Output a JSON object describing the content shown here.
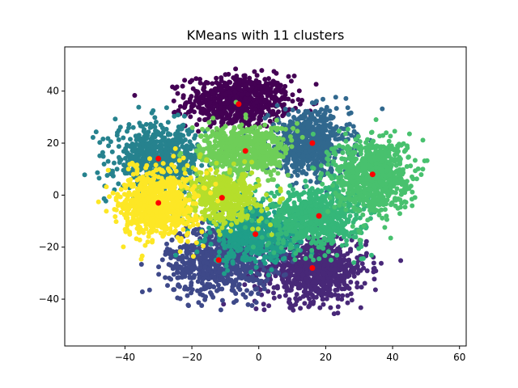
{
  "chart_data": {
    "type": "scatter",
    "title": "KMeans with 11 clusters",
    "xlabel": "",
    "ylabel": "",
    "xlim": [
      -58,
      62
    ],
    "ylim": [
      -58,
      57
    ],
    "xticks": [
      -40,
      -20,
      0,
      20,
      40,
      60
    ],
    "yticks": [
      -40,
      -20,
      0,
      20,
      40
    ],
    "grid": false,
    "legend": "none",
    "centroid_color": "#ff0000",
    "clusters": [
      {
        "color": "#440154",
        "center": [
          -6,
          36
        ],
        "spread": [
          14,
          9
        ],
        "n": 700
      },
      {
        "color": "#482878",
        "center": [
          16,
          -28
        ],
        "spread": [
          15,
          12
        ],
        "n": 800
      },
      {
        "color": "#3e4989",
        "center": [
          -12,
          -25
        ],
        "spread": [
          14,
          12
        ],
        "n": 750
      },
      {
        "color": "#31688e",
        "center": [
          15,
          20
        ],
        "spread": [
          11,
          11
        ],
        "n": 650
      },
      {
        "color": "#26828e",
        "center": [
          -30,
          14
        ],
        "spread": [
          12,
          12
        ],
        "n": 650
      },
      {
        "color": "#1f9e89",
        "center": [
          -1,
          -15
        ],
        "spread": [
          12,
          10
        ],
        "n": 600
      },
      {
        "color": "#35b779",
        "center": [
          17,
          -8
        ],
        "spread": [
          13,
          11
        ],
        "n": 650
      },
      {
        "color": "#48c16e",
        "center": [
          34,
          8
        ],
        "spread": [
          10,
          13
        ],
        "n": 800
      },
      {
        "color": "#6ece58",
        "center": [
          -4,
          17
        ],
        "spread": [
          12,
          9
        ],
        "n": 600
      },
      {
        "color": "#b5de2b",
        "center": [
          -11,
          -1
        ],
        "spread": [
          10,
          9
        ],
        "n": 500
      },
      {
        "color": "#fde725",
        "center": [
          -30,
          -3
        ],
        "spread": [
          10,
          12
        ],
        "n": 750
      }
    ],
    "centroids": [
      {
        "x": -6,
        "y": 35
      },
      {
        "x": -4,
        "y": 17
      },
      {
        "x": 16,
        "y": 20
      },
      {
        "x": -30,
        "y": 14
      },
      {
        "x": 34,
        "y": 8
      },
      {
        "x": -11,
        "y": -1
      },
      {
        "x": -30,
        "y": -3
      },
      {
        "x": 18,
        "y": -8
      },
      {
        "x": -1,
        "y": -15
      },
      {
        "x": -12,
        "y": -25
      },
      {
        "x": 16,
        "y": -28
      }
    ]
  }
}
